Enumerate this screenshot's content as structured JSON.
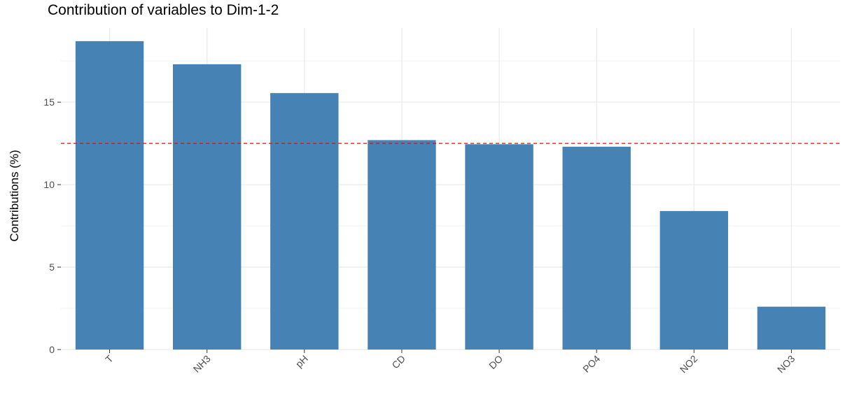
{
  "chart_data": {
    "type": "bar",
    "title": "Contribution of variables to Dim-1-2",
    "xlabel": "",
    "ylabel": "Contributions (%)",
    "categories": [
      "T",
      "NH3",
      "pH",
      "CD",
      "DO",
      "PO4",
      "NO2",
      "NO3"
    ],
    "values": [
      18.7,
      17.3,
      15.55,
      12.7,
      12.45,
      12.3,
      8.4,
      2.6
    ],
    "ylim": [
      0,
      19.5
    ],
    "yticks": [
      0,
      5,
      10,
      15
    ],
    "reference_line": {
      "value": 12.5,
      "style": "dashed",
      "color": "#ff0000"
    },
    "bar_color": "#4682b4",
    "grid": true,
    "legend": "none"
  }
}
